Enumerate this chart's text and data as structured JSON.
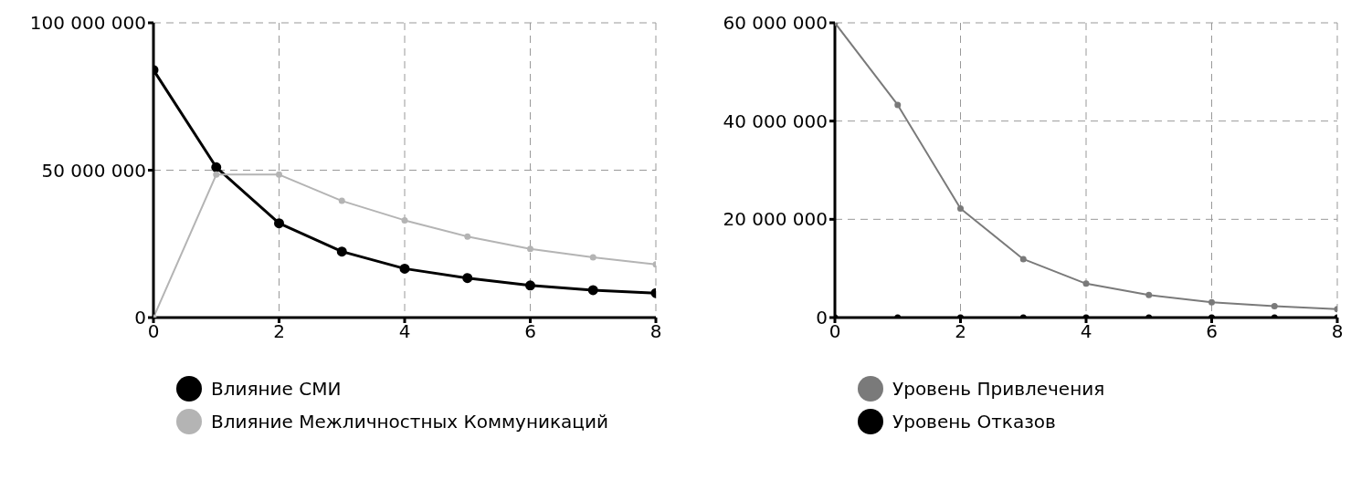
{
  "chart_data": [
    {
      "type": "line",
      "x": [
        0,
        1,
        2,
        3,
        4,
        5,
        6,
        7,
        8
      ],
      "series": [
        {
          "name": "Влияние СМИ",
          "color": "#000000",
          "values": [
            84000000,
            51000000,
            32000000,
            22400000,
            16600000,
            13400000,
            10900000,
            9300000,
            8300000
          ]
        },
        {
          "name": "Влияние Межличностных Коммуникаций",
          "color": "#b4b4b4",
          "values": [
            0,
            48500000,
            48500000,
            39600000,
            33000000,
            27500000,
            23300000,
            20400000,
            18000000
          ]
        }
      ],
      "xlim": [
        0,
        8
      ],
      "xticks": [
        0,
        2,
        4,
        6,
        8
      ],
      "ylim": [
        0,
        100000000
      ],
      "yticks": [
        0,
        50000000,
        100000000
      ],
      "grid": true,
      "legend": "bottom",
      "marker": "circle",
      "line_style": "solid"
    },
    {
      "type": "line",
      "x": [
        0,
        1,
        2,
        3,
        4,
        5,
        6,
        7,
        8
      ],
      "series": [
        {
          "name": "Уровень Привлечения",
          "color": "#7a7a7a",
          "values": [
            60000000,
            43300000,
            22200000,
            11900000,
            6900000,
            4600000,
            3100000,
            2300000,
            1700000
          ]
        },
        {
          "name": "Уровень Отказов",
          "color": "#000000",
          "values": [
            0,
            0,
            0,
            0,
            0,
            0,
            0,
            0,
            0
          ]
        }
      ],
      "xlim": [
        0,
        8
      ],
      "xticks": [
        0,
        2,
        4,
        6,
        8
      ],
      "ylim": [
        0,
        60000000
      ],
      "yticks": [
        0,
        20000000,
        40000000,
        60000000
      ],
      "grid": true,
      "legend": "bottom",
      "marker": "circle",
      "line_style": "solid"
    }
  ]
}
